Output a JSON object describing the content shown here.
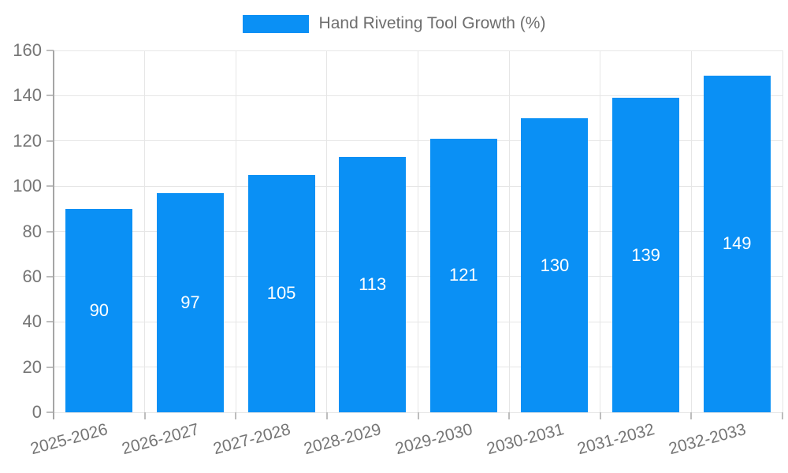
{
  "chart_data": {
    "type": "bar",
    "legend": {
      "label": "Hand Riveting Tool Growth (%)",
      "position": "top"
    },
    "categories": [
      "2025-2026",
      "2026-2027",
      "2027-2028",
      "2028-2029",
      "2029-2030",
      "2030-2031",
      "2031-2032",
      "2032-2033"
    ],
    "series": [
      {
        "name": "Hand Riveting Tool Growth (%)",
        "values": [
          90,
          97,
          105,
          113,
          121,
          130,
          139,
          149
        ]
      }
    ],
    "ylim": [
      0,
      160
    ],
    "yticks": [
      0,
      20,
      40,
      60,
      80,
      100,
      120,
      140,
      160
    ],
    "grid": true,
    "x_label_rotation_deg": -15,
    "value_labels": "centered-inside-bars",
    "colors": {
      "bar": "#0a90f5",
      "value_label": "#ffffff",
      "grid": "#e6e6e6",
      "axis": "#a6a6a6",
      "tick": "#bdbdbd",
      "tick_label": "#757575",
      "legend_text": "#6e6e6e",
      "background": "#ffffff"
    }
  }
}
